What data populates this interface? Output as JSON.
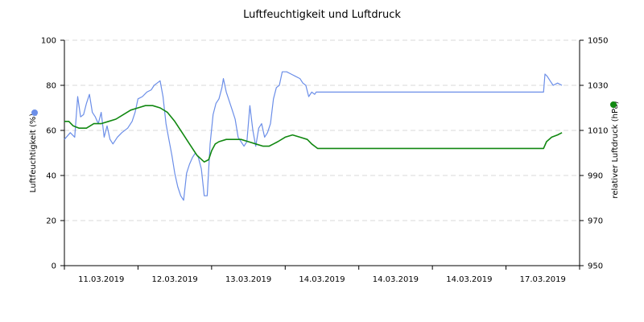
{
  "chart_data": {
    "type": "line",
    "title": "Luftfeuchtigkeit und Luftdruck",
    "xlabel": "",
    "ylabel": "Luftfeuchtigkeit (%)",
    "ylabel_right": "relativer Luftdruck (hPa)",
    "x_tick_labels": [
      "11.03.2019",
      "12.03.2019",
      "13.03.2019",
      "14.03.2019",
      "14.03.2019",
      "14.03.2019",
      "17.03.2019"
    ],
    "x_range": [
      0,
      7
    ],
    "ylim": [
      0,
      100
    ],
    "ylim_right": [
      950,
      1050
    ],
    "y_ticks": [
      0,
      20,
      40,
      60,
      80,
      100
    ],
    "y_ticks_right": [
      950,
      970,
      990,
      1010,
      1030,
      1050
    ],
    "grid": true,
    "colors": {
      "humidity": "#6b8ee8",
      "pressure": "#118811"
    },
    "series": [
      {
        "key": "humidity",
        "axis": "left",
        "marker": "dot",
        "points": [
          [
            0.0,
            56
          ],
          [
            0.08,
            59
          ],
          [
            0.14,
            57
          ],
          [
            0.18,
            75
          ],
          [
            0.22,
            66
          ],
          [
            0.26,
            67
          ],
          [
            0.3,
            72
          ],
          [
            0.34,
            76
          ],
          [
            0.38,
            68
          ],
          [
            0.42,
            66
          ],
          [
            0.46,
            63
          ],
          [
            0.5,
            68
          ],
          [
            0.54,
            57
          ],
          [
            0.58,
            62
          ],
          [
            0.62,
            56
          ],
          [
            0.66,
            54
          ],
          [
            0.72,
            57
          ],
          [
            0.78,
            59
          ],
          [
            0.86,
            61
          ],
          [
            0.92,
            64
          ],
          [
            0.96,
            68
          ],
          [
            1.0,
            74
          ],
          [
            1.06,
            75
          ],
          [
            1.12,
            77
          ],
          [
            1.18,
            78
          ],
          [
            1.22,
            80
          ],
          [
            1.26,
            81
          ],
          [
            1.3,
            82
          ],
          [
            1.34,
            75
          ],
          [
            1.38,
            63
          ],
          [
            1.42,
            56
          ],
          [
            1.46,
            49
          ],
          [
            1.5,
            41
          ],
          [
            1.54,
            35
          ],
          [
            1.58,
            31
          ],
          [
            1.62,
            29
          ],
          [
            1.66,
            41
          ],
          [
            1.7,
            45
          ],
          [
            1.74,
            48
          ],
          [
            1.78,
            50
          ],
          [
            1.82,
            48
          ],
          [
            1.86,
            43
          ],
          [
            1.9,
            31
          ],
          [
            1.94,
            31
          ],
          [
            1.98,
            54
          ],
          [
            2.02,
            67
          ],
          [
            2.06,
            72
          ],
          [
            2.1,
            74
          ],
          [
            2.14,
            79
          ],
          [
            2.16,
            83
          ],
          [
            2.2,
            77
          ],
          [
            2.24,
            73
          ],
          [
            2.28,
            69
          ],
          [
            2.32,
            65
          ],
          [
            2.36,
            57
          ],
          [
            2.4,
            55
          ],
          [
            2.44,
            53
          ],
          [
            2.48,
            55
          ],
          [
            2.52,
            71
          ],
          [
            2.56,
            60
          ],
          [
            2.6,
            53
          ],
          [
            2.64,
            61
          ],
          [
            2.68,
            63
          ],
          [
            2.72,
            57
          ],
          [
            2.76,
            59
          ],
          [
            2.8,
            63
          ],
          [
            2.84,
            74
          ],
          [
            2.88,
            79
          ],
          [
            2.92,
            80
          ],
          [
            2.96,
            86
          ],
          [
            3.02,
            86
          ],
          [
            3.08,
            85
          ],
          [
            3.14,
            84
          ],
          [
            3.2,
            83
          ],
          [
            3.24,
            81
          ],
          [
            3.28,
            80
          ],
          [
            3.32,
            75
          ],
          [
            3.36,
            77
          ],
          [
            3.4,
            76
          ],
          [
            3.42,
            77
          ],
          [
            3.5,
            77
          ],
          [
            4.5,
            77
          ],
          [
            5.5,
            77
          ],
          [
            6.51,
            77
          ],
          [
            6.53,
            85
          ],
          [
            6.56,
            84
          ],
          [
            6.6,
            82
          ],
          [
            6.64,
            80
          ],
          [
            6.7,
            81
          ],
          [
            6.76,
            80
          ]
        ]
      },
      {
        "key": "pressure",
        "axis": "right",
        "marker": "dot",
        "points": [
          [
            0.0,
            1014
          ],
          [
            0.06,
            1014
          ],
          [
            0.12,
            1012
          ],
          [
            0.2,
            1011
          ],
          [
            0.3,
            1011
          ],
          [
            0.4,
            1013
          ],
          [
            0.5,
            1013
          ],
          [
            0.6,
            1014
          ],
          [
            0.7,
            1015
          ],
          [
            0.8,
            1017
          ],
          [
            0.9,
            1019
          ],
          [
            1.0,
            1020
          ],
          [
            1.1,
            1021
          ],
          [
            1.2,
            1021
          ],
          [
            1.3,
            1020
          ],
          [
            1.4,
            1018
          ],
          [
            1.5,
            1014
          ],
          [
            1.6,
            1009
          ],
          [
            1.7,
            1004
          ],
          [
            1.8,
            999
          ],
          [
            1.9,
            996
          ],
          [
            1.96,
            997
          ],
          [
            2.0,
            1001
          ],
          [
            2.05,
            1004
          ],
          [
            2.1,
            1005
          ],
          [
            2.2,
            1006
          ],
          [
            2.3,
            1006
          ],
          [
            2.4,
            1006
          ],
          [
            2.5,
            1005
          ],
          [
            2.6,
            1004
          ],
          [
            2.7,
            1003
          ],
          [
            2.78,
            1003
          ],
          [
            2.84,
            1004
          ],
          [
            2.9,
            1005
          ],
          [
            3.0,
            1007
          ],
          [
            3.1,
            1008
          ],
          [
            3.2,
            1007
          ],
          [
            3.3,
            1006
          ],
          [
            3.36,
            1004
          ],
          [
            3.4,
            1003
          ],
          [
            3.44,
            1002
          ],
          [
            4.5,
            1002
          ],
          [
            5.5,
            1002
          ],
          [
            6.51,
            1002
          ],
          [
            6.55,
            1005
          ],
          [
            6.62,
            1007
          ],
          [
            6.7,
            1008
          ],
          [
            6.76,
            1009
          ]
        ]
      }
    ]
  }
}
